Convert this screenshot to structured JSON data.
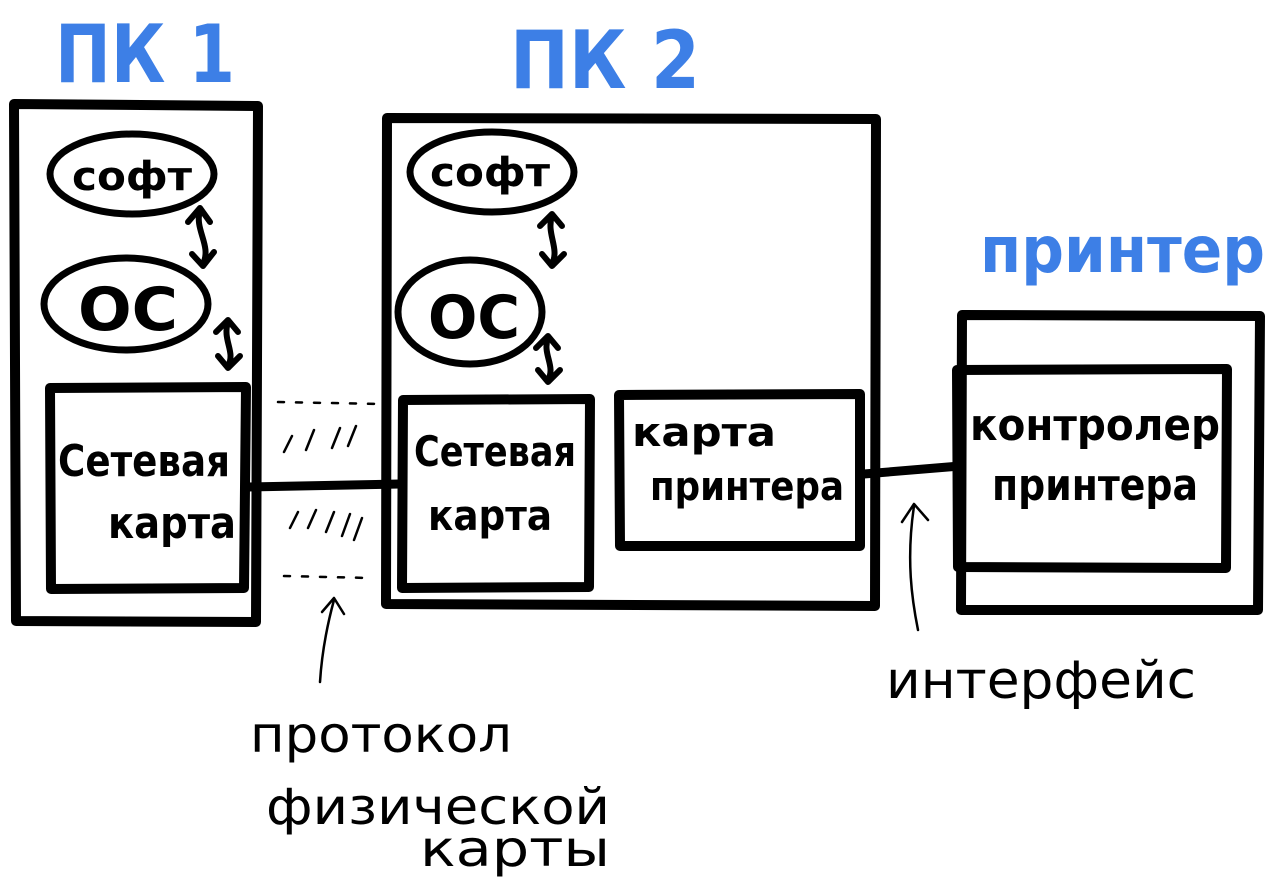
{
  "pc1": {
    "title": "ПК 1",
    "soft": "софт",
    "os": "ОС",
    "nic_line1": "Сетевая",
    "nic_line2": "карта"
  },
  "pc2": {
    "title": "ПК 2",
    "soft": "софт",
    "os": "ОС",
    "nic_line1": "Сетевая",
    "nic_line2": "карта",
    "printer_card_line1": "карта",
    "printer_card_line2": "принтера"
  },
  "printer": {
    "title": "принтер",
    "controller_line1": "контролер",
    "controller_line2": "принтера"
  },
  "annotations": {
    "protocol_line1": "протокол",
    "protocol_line2": "физической",
    "protocol_line3": "карты",
    "interface": "интерфейс"
  },
  "colors": {
    "title_blue": "#3d7fe6",
    "ink": "#000000"
  }
}
